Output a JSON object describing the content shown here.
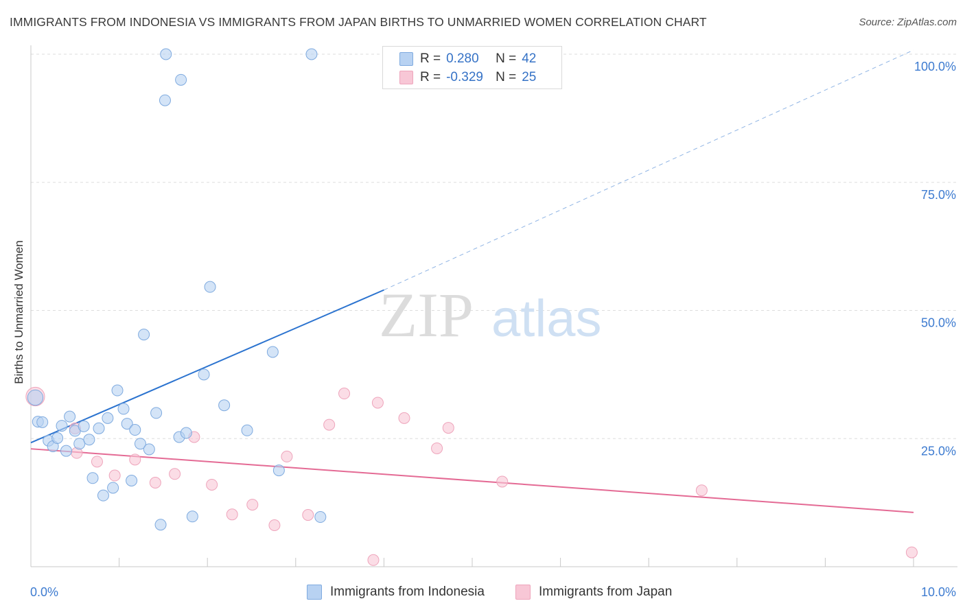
{
  "header": {
    "title": "IMMIGRANTS FROM INDONESIA VS IMMIGRANTS FROM JAPAN BIRTHS TO UNMARRIED WOMEN CORRELATION CHART",
    "source": "Source: ZipAtlas.com"
  },
  "watermark": {
    "zip": "ZIP",
    "atlas": "atlas"
  },
  "colors": {
    "indonesia_fill": "#b8d2f2",
    "indonesia_stroke": "#7eaadf",
    "indonesia_line": "#2b73cf",
    "japan_fill": "#f8c7d6",
    "japan_stroke": "#eea4bb",
    "japan_line": "#e46a94",
    "tick_label": "#3d7bd0",
    "grid": "#dddddd"
  },
  "legend": {
    "rows": [
      {
        "r_label": "R =",
        "r_value": "0.280",
        "n_label": "N =",
        "n_value": "42"
      },
      {
        "r_label": "R =",
        "r_value": "-0.329",
        "n_label": "N =",
        "n_value": "25"
      }
    ]
  },
  "bottom_legend": {
    "indonesia": "Immigrants from Indonesia",
    "japan": "Immigrants from Japan"
  },
  "chart_data": {
    "type": "scatter",
    "title": "IMMIGRANTS FROM INDONESIA VS IMMIGRANTS FROM JAPAN BIRTHS TO UNMARRIED WOMEN CORRELATION CHART",
    "xlabel": "",
    "ylabel": "Births to Unmarried Women",
    "xlim": [
      0,
      10
    ],
    "ylim": [
      0,
      100
    ],
    "x_tick_labels": [
      {
        "value": 0,
        "label": "0.0%"
      },
      {
        "value": 10,
        "label": "10.0%"
      }
    ],
    "x_minor_ticks": [
      1,
      2,
      3,
      4,
      5,
      6,
      7,
      8,
      9
    ],
    "y_tick_labels": [
      {
        "value": 25,
        "label": "25.0%"
      },
      {
        "value": 50,
        "label": "50.0%"
      },
      {
        "value": 75,
        "label": "75.0%"
      },
      {
        "value": 100,
        "label": "100.0%"
      }
    ],
    "series": [
      {
        "name": "Immigrants from Indonesia",
        "R": 0.28,
        "N": 42,
        "trend": {
          "x0": 0,
          "y0": 24.2,
          "x1": 4.0,
          "y1": 54.0,
          "x_dash_end": 10.0,
          "y_dash_end": 100.8
        },
        "points": [
          {
            "x": 0.05,
            "y": 33.0,
            "s": 1.4
          },
          {
            "x": 0.08,
            "y": 28.3
          },
          {
            "x": 0.13,
            "y": 28.2
          },
          {
            "x": 0.2,
            "y": 24.6
          },
          {
            "x": 0.25,
            "y": 23.5
          },
          {
            "x": 0.3,
            "y": 25.1
          },
          {
            "x": 0.35,
            "y": 27.5
          },
          {
            "x": 0.4,
            "y": 22.6
          },
          {
            "x": 0.44,
            "y": 29.3
          },
          {
            "x": 0.5,
            "y": 26.5
          },
          {
            "x": 0.55,
            "y": 24.0
          },
          {
            "x": 0.6,
            "y": 27.4
          },
          {
            "x": 0.66,
            "y": 24.8
          },
          {
            "x": 0.7,
            "y": 17.3
          },
          {
            "x": 0.77,
            "y": 27.0
          },
          {
            "x": 0.82,
            "y": 13.9
          },
          {
            "x": 0.87,
            "y": 29.0
          },
          {
            "x": 0.93,
            "y": 15.4
          },
          {
            "x": 0.98,
            "y": 34.4
          },
          {
            "x": 1.05,
            "y": 30.8
          },
          {
            "x": 1.09,
            "y": 27.9
          },
          {
            "x": 1.14,
            "y": 16.8
          },
          {
            "x": 1.18,
            "y": 26.7
          },
          {
            "x": 1.24,
            "y": 24.0
          },
          {
            "x": 1.28,
            "y": 45.3
          },
          {
            "x": 1.34,
            "y": 22.9
          },
          {
            "x": 1.42,
            "y": 30.0
          },
          {
            "x": 1.47,
            "y": 8.2
          },
          {
            "x": 1.52,
            "y": 91.0
          },
          {
            "x": 1.53,
            "y": 100.0
          },
          {
            "x": 1.7,
            "y": 95.0
          },
          {
            "x": 1.68,
            "y": 25.3
          },
          {
            "x": 1.76,
            "y": 26.1
          },
          {
            "x": 1.83,
            "y": 9.8
          },
          {
            "x": 1.96,
            "y": 37.5
          },
          {
            "x": 2.03,
            "y": 54.6
          },
          {
            "x": 2.19,
            "y": 31.5
          },
          {
            "x": 2.45,
            "y": 26.6
          },
          {
            "x": 2.74,
            "y": 41.9
          },
          {
            "x": 2.81,
            "y": 18.8
          },
          {
            "x": 3.18,
            "y": 100.0
          },
          {
            "x": 3.28,
            "y": 9.7
          }
        ]
      },
      {
        "name": "Immigrants from Japan",
        "R": -0.329,
        "N": 25,
        "trend": {
          "x0": 0,
          "y0": 23.0,
          "x1": 10.0,
          "y1": 10.6
        },
        "points": [
          {
            "x": 0.05,
            "y": 33.2,
            "s": 1.7
          },
          {
            "x": 0.5,
            "y": 27.0
          },
          {
            "x": 0.52,
            "y": 22.2
          },
          {
            "x": 0.75,
            "y": 20.5
          },
          {
            "x": 0.95,
            "y": 17.8
          },
          {
            "x": 1.18,
            "y": 20.9
          },
          {
            "x": 1.41,
            "y": 16.4
          },
          {
            "x": 1.63,
            "y": 18.1
          },
          {
            "x": 1.85,
            "y": 25.3
          },
          {
            "x": 2.05,
            "y": 16.0
          },
          {
            "x": 2.28,
            "y": 10.2
          },
          {
            "x": 2.51,
            "y": 12.1
          },
          {
            "x": 2.76,
            "y": 8.1
          },
          {
            "x": 2.9,
            "y": 21.5
          },
          {
            "x": 3.14,
            "y": 10.1
          },
          {
            "x": 3.38,
            "y": 27.7
          },
          {
            "x": 3.55,
            "y": 33.8
          },
          {
            "x": 3.88,
            "y": 1.3
          },
          {
            "x": 3.93,
            "y": 32.0
          },
          {
            "x": 4.23,
            "y": 29.0
          },
          {
            "x": 4.6,
            "y": 23.1
          },
          {
            "x": 4.73,
            "y": 27.1
          },
          {
            "x": 5.34,
            "y": 16.6
          },
          {
            "x": 7.6,
            "y": 14.9
          },
          {
            "x": 9.98,
            "y": 2.8
          }
        ]
      }
    ]
  }
}
